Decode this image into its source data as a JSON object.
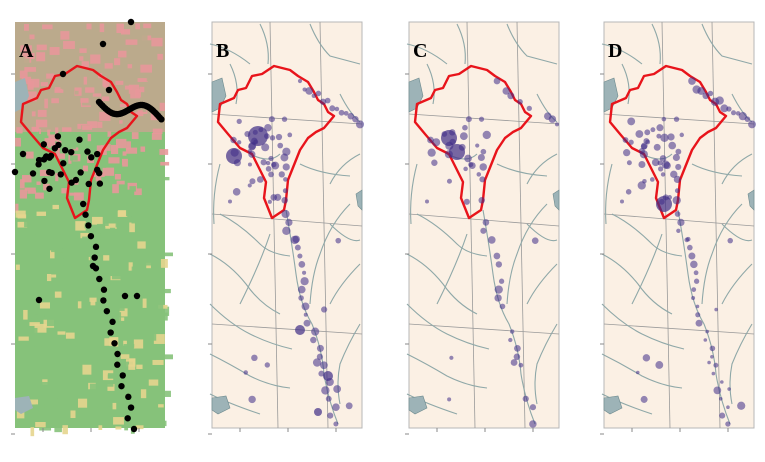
{
  "panels": [
    {
      "id": "a",
      "letter": "A",
      "style": "landcover"
    },
    {
      "id": "b",
      "letter": "B",
      "style": "rivers"
    },
    {
      "id": "c",
      "letter": "C",
      "style": "rivers"
    },
    {
      "id": "d",
      "letter": "D",
      "style": "rivers"
    }
  ],
  "colors": {
    "boundary": "#e8141b",
    "land_base": "#fbf0e4",
    "river": "#8fa8a8",
    "lake": "#9db3b7",
    "sample_dot": "#3e2c86",
    "landcover_pink": "#e8989a",
    "landcover_green": "#86c27a",
    "landcover_yellow": "#e6d58e",
    "landcover_marker": "#000000"
  }
}
